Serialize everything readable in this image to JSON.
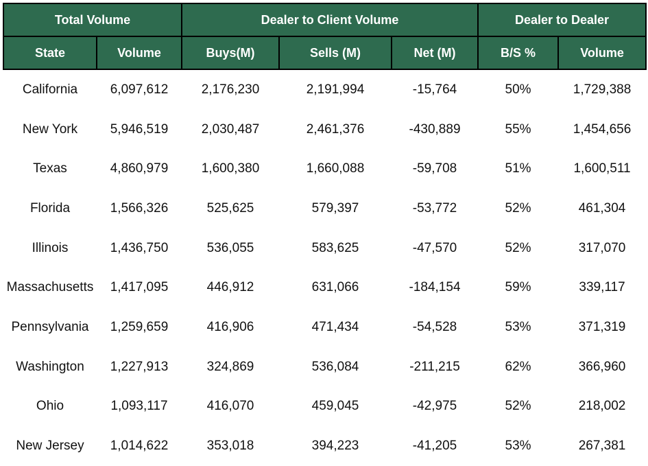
{
  "header_groups": [
    "Total Volume",
    "Dealer to Client Volume",
    "Dealer to Dealer"
  ],
  "columns": [
    "State",
    "Volume",
    "Buys(M)",
    "Sells (M)",
    "Net (M)",
    "B/S %",
    "Volume"
  ],
  "rows": [
    [
      "California",
      "6,097,612",
      "2,176,230",
      "2,191,994",
      "-15,764",
      "50%",
      "1,729,388"
    ],
    [
      "New York",
      "5,946,519",
      "2,030,487",
      "2,461,376",
      "-430,889",
      "55%",
      "1,454,656"
    ],
    [
      "Texas",
      "4,860,979",
      "1,600,380",
      "1,660,088",
      "-59,708",
      "51%",
      "1,600,511"
    ],
    [
      "Florida",
      "1,566,326",
      "525,625",
      "579,397",
      "-53,772",
      "52%",
      "461,304"
    ],
    [
      "Illinois",
      "1,436,750",
      "536,055",
      "583,625",
      "-47,570",
      "52%",
      "317,070"
    ],
    [
      "Massachusetts",
      "1,417,095",
      "446,912",
      "631,066",
      "-184,154",
      "59%",
      "339,117"
    ],
    [
      "Pennsylvania",
      "1,259,659",
      "416,906",
      "471,434",
      "-54,528",
      "53%",
      "371,319"
    ],
    [
      "Washington",
      "1,227,913",
      "324,869",
      "536,084",
      "-211,215",
      "62%",
      "366,960"
    ],
    [
      "Ohio",
      "1,093,117",
      "416,070",
      "459,045",
      "-42,975",
      "52%",
      "218,002"
    ],
    [
      "New Jersey",
      "1,014,622",
      "353,018",
      "394,223",
      "-41,205",
      "53%",
      "267,381"
    ]
  ],
  "colors": {
    "header_bg": "#2e6b4f",
    "header_text": "#ffffff",
    "border": "#000000"
  }
}
